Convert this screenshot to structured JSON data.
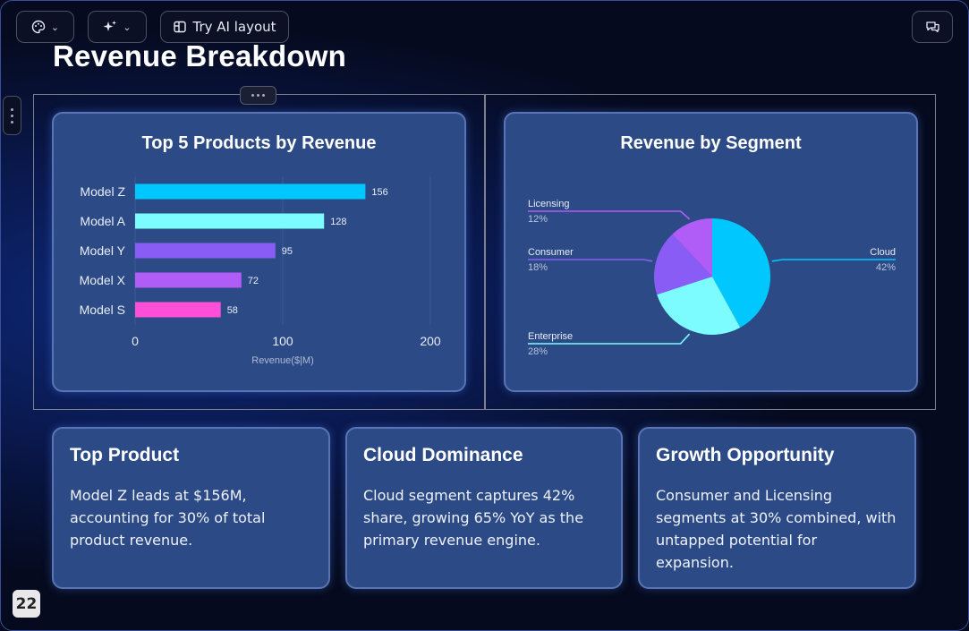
{
  "toolbar": {
    "theme_icon": "palette-icon",
    "ai_icon": "sparkles-icon",
    "layout_icon": "layout-icon",
    "try_ai_label": "Try AI layout",
    "comment_icon": "comment-icon"
  },
  "slide": {
    "title": "Revenue Breakdown",
    "page_number": "22"
  },
  "colors": {
    "card_bg": "#2c4b86",
    "model_z": "#00c8ff",
    "model_a": "#7dfcff",
    "model_y": "#8a5cf6",
    "model_x": "#b05cf6",
    "model_s": "#ff4fd8"
  },
  "chart_data": [
    {
      "type": "bar",
      "orientation": "horizontal",
      "title": "Top 5 Products by Revenue",
      "categories": [
        "Model Z",
        "Model A",
        "Model Y",
        "Model X",
        "Model S"
      ],
      "values": [
        156,
        128,
        95,
        72,
        58
      ],
      "colors": [
        "#00c8ff",
        "#7dfcff",
        "#8a5cf6",
        "#b05cf6",
        "#ff4fd8"
      ],
      "xlabel": "Revenue($|M)",
      "xlim": [
        0,
        200
      ],
      "xticks": [
        "0",
        "100",
        "200"
      ],
      "grid": true
    },
    {
      "type": "pie",
      "title": "Revenue by Segment",
      "categories": [
        "Cloud",
        "Enterprise",
        "Consumer",
        "Licensing"
      ],
      "values": [
        42,
        28,
        18,
        12
      ],
      "labels": [
        "42%",
        "28%",
        "18%",
        "12%"
      ],
      "colors": [
        "#00c8ff",
        "#7dfcff",
        "#8a5cf6",
        "#b05cf6"
      ]
    }
  ],
  "insights": [
    {
      "title": "Top Product",
      "body": "Model Z leads at $156M, accounting for 30% of total product revenue."
    },
    {
      "title": "Cloud Dominance",
      "body": "Cloud segment captures 42% share, growing 65% YoY as the primary revenue engine."
    },
    {
      "title": "Growth Opportunity",
      "body": "Consumer and Licensing segments at 30% combined, with untapped potential for expansion."
    }
  ]
}
